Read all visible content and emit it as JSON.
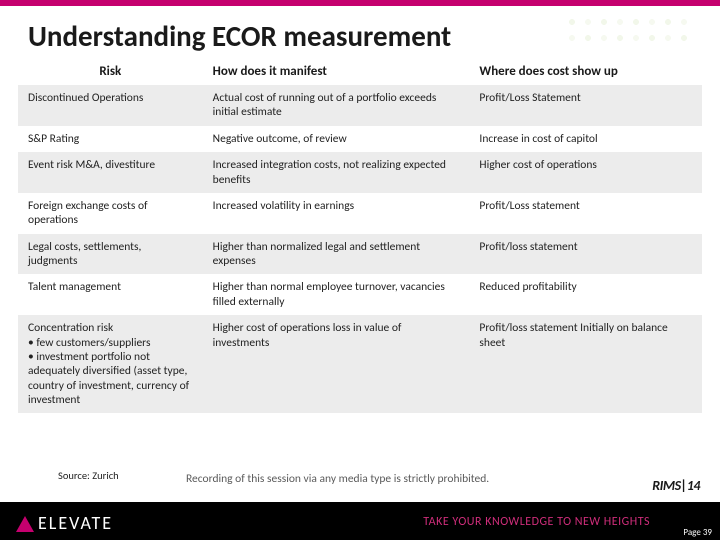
{
  "title": "Understanding ECOR measurement",
  "table": {
    "type": "table",
    "columns": [
      "Risk",
      "How does it manifest",
      "Where does cost show up"
    ],
    "col_widths_pct": [
      27,
      39,
      34
    ],
    "header_fontsize": 13,
    "cell_fontsize": 11.5,
    "band_colors": [
      "#ececec",
      "#ffffff"
    ],
    "text_color": "#1a1a1a",
    "rows": [
      [
        "Discontinued Operations",
        "Actual cost of running out of a portfolio exceeds initial estimate",
        "Profit/Loss Statement"
      ],
      [
        "S&P Rating",
        "Negative outcome, of review",
        "Increase in cost of capitol"
      ],
      [
        "Event risk M&A, divestiture",
        "Increased integration costs, not realizing expected benefits",
        "Higher cost of operations"
      ],
      [
        "Foreign exchange costs of operations",
        "Increased volatility in earnings",
        "Profit/Loss statement"
      ],
      [
        "Legal costs, settlements, judgments",
        "Higher than normalized legal and settlement expenses",
        "Profit/loss statement"
      ],
      [
        "Talent management",
        "Higher than normal employee turnover, vacancies filled externally",
        "Reduced profitability"
      ],
      [
        "Concentration risk\n• few customers/suppliers\n• investment portfolio not adequately diversified (asset type, country of investment, currency of investment",
        "Higher cost of operations loss in value of investments",
        "Profit/loss statement Initially on balance sheet"
      ]
    ]
  },
  "source_label": "Source: Zurich",
  "recording_notice": "Recording of this session via any media type is strictly prohibited.",
  "rims_logo_text": "RIMS|14",
  "footer": {
    "brand": "ELEVATE",
    "tagline": "TAKE YOUR KNOWLEDGE TO NEW HEIGHTS",
    "page_label": "Page",
    "page_number": "39"
  },
  "colors": {
    "accent": "#c5006e",
    "tagline": "#ce2d7a",
    "footer_bg": "#000000",
    "background": "#ffffff"
  }
}
